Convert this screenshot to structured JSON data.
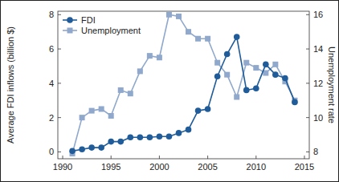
{
  "chart_data": {
    "type": "line",
    "x": [
      1991,
      1992,
      1993,
      1994,
      1995,
      1996,
      1997,
      1998,
      1999,
      2000,
      2001,
      2002,
      2003,
      2004,
      2005,
      2006,
      2007,
      2008,
      2009,
      2010,
      2011,
      2012,
      2013,
      2014
    ],
    "series": [
      {
        "name": "FDI",
        "color": "#1f5c99",
        "marker": "circle",
        "line_style": "solid",
        "values": [
          0.05,
          0.15,
          0.25,
          0.25,
          0.6,
          0.6,
          0.85,
          0.85,
          0.85,
          0.9,
          0.9,
          1.1,
          1.3,
          2.4,
          2.5,
          4.4,
          5.7,
          6.7,
          3.6,
          3.7,
          5.1,
          4.5,
          4.3,
          2.9
        ]
      },
      {
        "name": "Unemployment",
        "color": "#8fa8cc",
        "marker": "square",
        "line_style": "solid",
        "axis": "y2",
        "values": [
          7.9,
          10.0,
          10.4,
          10.5,
          10.1,
          11.6,
          11.4,
          12.7,
          13.6,
          13.5,
          16.0,
          15.9,
          15.0,
          14.6,
          14.6,
          13.2,
          12.5,
          11.2,
          13.2,
          12.9,
          12.6,
          13.1,
          12.1,
          11.0
        ]
      }
    ],
    "y_label": "Average FDI inflows (billion $)",
    "y2_label": "Unemployment rate",
    "xlim": [
      1989.5,
      2015.5
    ],
    "xticks": [
      1990,
      1995,
      2000,
      2005,
      2010,
      2015
    ],
    "ylim": [
      -0.4,
      8.2
    ],
    "yticks": [
      0,
      2,
      4,
      6,
      8
    ],
    "y2lim": [
      7.6,
      16.2
    ],
    "y2ticks": [
      8,
      10,
      12,
      14,
      16
    ],
    "legend": "upper left",
    "grid": false
  }
}
